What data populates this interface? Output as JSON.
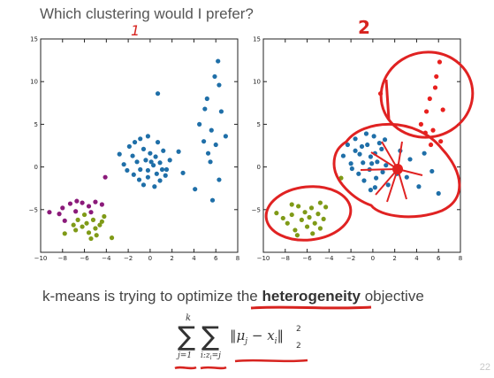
{
  "slide": {
    "title": "Which clustering would I prefer?",
    "objective_prefix": "k-means is trying to optimize the ",
    "objective_keyword": "heterogeneity",
    "objective_suffix": " objective",
    "page_number": "22"
  },
  "annotations": {
    "label_left": "1",
    "label_right": "2"
  },
  "formula": {
    "outer_upper": "k",
    "outer_lower": "j=1",
    "inner_lower": "i:z",
    "inner_lower_sub": "i",
    "inner_lower_rest": "=j",
    "mu": "μ",
    "mu_sub": "j",
    "minus": "−",
    "x": "x",
    "x_sub": "i",
    "norm_sub": "2",
    "norm_sup": "2"
  },
  "chart_data": [
    {
      "type": "scatter",
      "title": "",
      "xlabel": "",
      "ylabel": "",
      "xlim": [
        -10,
        8
      ],
      "ylim": [
        -10,
        15
      ],
      "xticks": [
        -10,
        -8,
        -6,
        -4,
        -2,
        0,
        2,
        4,
        6,
        8
      ],
      "yticks": [
        -10,
        -5,
        0,
        5,
        10,
        15
      ],
      "colors": {
        "purple": "#8b1a7a",
        "green": "#7f9a17",
        "blue": "#1f6fa8"
      },
      "series": [
        {
          "color": "purple",
          "points": [
            [
              -9.2,
              -5.3
            ],
            [
              -8.3,
              -5.5
            ],
            [
              -8,
              -4.8
            ],
            [
              -7.3,
              -4.3
            ],
            [
              -6.7,
              -4.0
            ],
            [
              -6.2,
              -4.2
            ],
            [
              -5.6,
              -4.6
            ],
            [
              -5.0,
              -4.1
            ],
            [
              -4.4,
              -4.4
            ],
            [
              -6.8,
              -5.2
            ],
            [
              -7.8,
              -6.3
            ],
            [
              -5.4,
              -5.3
            ],
            [
              -4.1,
              -1.2
            ]
          ]
        },
        {
          "color": "green",
          "points": [
            [
              -7.8,
              -7.8
            ],
            [
              -7.0,
              -6.8
            ],
            [
              -6.6,
              -6.2
            ],
            [
              -6.2,
              -7.0
            ],
            [
              -5.8,
              -6.6
            ],
            [
              -5.6,
              -7.7
            ],
            [
              -5.2,
              -6.2
            ],
            [
              -5.0,
              -7.2
            ],
            [
              -4.6,
              -6.8
            ],
            [
              -4.4,
              -6.4
            ],
            [
              -6.0,
              -5.6
            ],
            [
              -4.9,
              -8.0
            ],
            [
              -5.4,
              -8.4
            ],
            [
              -6.8,
              -7.4
            ],
            [
              -3.5,
              -8.3
            ],
            [
              -4.2,
              -5.8
            ]
          ]
        },
        {
          "color": "blue",
          "points": [
            [
              -2.8,
              1.5
            ],
            [
              -2.4,
              0.3
            ],
            [
              -1.9,
              2.4
            ],
            [
              -1.6,
              1.3
            ],
            [
              -1.2,
              0.6
            ],
            [
              -0.9,
              3.3
            ],
            [
              -0.6,
              2.1
            ],
            [
              -0.4,
              0.8
            ],
            [
              -0.2,
              -0.4
            ],
            [
              0.0,
              1.6
            ],
            [
              0.3,
              0.2
            ],
            [
              0.6,
              -0.8
            ],
            [
              0.9,
              0.5
            ],
            [
              1.2,
              1.9
            ],
            [
              1.5,
              -0.3
            ],
            [
              1.8,
              0.8
            ],
            [
              -1.5,
              -0.9
            ],
            [
              -1.0,
              -1.5
            ],
            [
              -0.6,
              -2.1
            ],
            [
              -0.2,
              -1.2
            ],
            [
              0.4,
              -2.3
            ],
            [
              0.9,
              -1.6
            ],
            [
              1.4,
              -1.0
            ],
            [
              -2.1,
              -0.4
            ],
            [
              -1.4,
              2.9
            ],
            [
              -0.2,
              3.6
            ],
            [
              0.7,
              2.9
            ],
            [
              0.7,
              8.6
            ],
            [
              2.6,
              1.8
            ],
            [
              -0.9,
              -0.3
            ],
            [
              0.1,
              0.6
            ],
            [
              0.5,
              1.2
            ],
            [
              1.1,
              -0.3
            ],
            [
              3.0,
              -0.7
            ],
            [
              4.1,
              -2.6
            ],
            [
              4.5,
              5.0
            ],
            [
              5.0,
              6.8
            ],
            [
              5.2,
              8.0
            ],
            [
              5.6,
              4.3
            ],
            [
              5.9,
              10.6
            ],
            [
              6.2,
              12.4
            ],
            [
              6.5,
              6.5
            ],
            [
              6.0,
              2.6
            ],
            [
              6.9,
              3.6
            ],
            [
              5.5,
              0.6
            ],
            [
              6.3,
              -1.5
            ],
            [
              5.7,
              -3.9
            ],
            [
              5.3,
              1.6
            ],
            [
              6.3,
              9.6
            ],
            [
              4.9,
              3.0
            ]
          ]
        }
      ]
    },
    {
      "type": "scatter",
      "title": "",
      "xlabel": "",
      "ylabel": "",
      "xlim": [
        -10,
        8
      ],
      "ylim": [
        -10,
        15
      ],
      "xticks": [
        -10,
        -8,
        -6,
        -4,
        -2,
        0,
        2,
        4,
        6,
        8
      ],
      "yticks": [
        -10,
        -5,
        0,
        5,
        10,
        15
      ],
      "colors": {
        "purple": "#8b1a7a",
        "green": "#7f9a17",
        "blue": "#1f6fa8",
        "red": "#e8201e"
      },
      "series": [
        {
          "color": "green",
          "points": [
            [
              -8.8,
              -5.4
            ],
            [
              -8.2,
              -6.0
            ],
            [
              -7.8,
              -6.6
            ],
            [
              -7.4,
              -5.6
            ],
            [
              -7.1,
              -7.4
            ],
            [
              -6.8,
              -4.6
            ],
            [
              -6.5,
              -6.2
            ],
            [
              -6.2,
              -5.3
            ],
            [
              -6.0,
              -7.0
            ],
            [
              -5.8,
              -5.9
            ],
            [
              -5.6,
              -4.8
            ],
            [
              -5.3,
              -6.6
            ],
            [
              -5.0,
              -5.5
            ],
            [
              -4.8,
              -7.2
            ],
            [
              -4.5,
              -6.1
            ],
            [
              -4.3,
              -4.7
            ],
            [
              -6.9,
              -8.0
            ],
            [
              -5.5,
              -7.8
            ],
            [
              -7.4,
              -4.4
            ],
            [
              -4.8,
              -4.2
            ],
            [
              -2.9,
              -1.3
            ]
          ]
        },
        {
          "color": "blue",
          "points": [
            [
              -2.7,
              1.3
            ],
            [
              -2.3,
              2.6
            ],
            [
              -2.0,
              0.4
            ],
            [
              -1.6,
              3.3
            ],
            [
              -1.2,
              1.5
            ],
            [
              -0.9,
              0.5
            ],
            [
              -0.5,
              2.6
            ],
            [
              -0.2,
              1.2
            ],
            [
              0.1,
              3.6
            ],
            [
              0.4,
              0.6
            ],
            [
              0.8,
              2.1
            ],
            [
              -1.3,
              -0.8
            ],
            [
              -0.8,
              -1.6
            ],
            [
              -0.3,
              -0.3
            ],
            [
              0.3,
              -1.3
            ],
            [
              0.9,
              -0.6
            ],
            [
              1.4,
              -2.1
            ],
            [
              -1.9,
              -0.2
            ],
            [
              -0.6,
              3.9
            ],
            [
              0.2,
              -2.4
            ],
            [
              1.2,
              0.2
            ],
            [
              2.5,
              1.9
            ],
            [
              3.1,
              -1.2
            ],
            [
              4.2,
              -2.3
            ],
            [
              5.4,
              -0.5
            ],
            [
              6.0,
              -3.1
            ],
            [
              4.7,
              1.6
            ],
            [
              3.4,
              0.9
            ],
            [
              2.2,
              -0.8
            ],
            [
              -0.1,
              0.4
            ],
            [
              1.1,
              3.2
            ],
            [
              -1.6,
              1.9
            ],
            [
              0.6,
              2.8
            ],
            [
              -0.2,
              -2.7
            ],
            [
              -1.0,
              2.4
            ],
            [
              0.2,
              1.6
            ]
          ]
        },
        {
          "color": "red",
          "points": [
            [
              0.7,
              8.6
            ],
            [
              4.4,
              5.0
            ],
            [
              4.9,
              6.5
            ],
            [
              5.2,
              8.0
            ],
            [
              5.5,
              4.3
            ],
            [
              5.8,
              10.6
            ],
            [
              6.1,
              12.3
            ],
            [
              6.4,
              6.7
            ],
            [
              6.2,
              3.0
            ],
            [
              5.7,
              9.3
            ],
            [
              5.3,
              2.6
            ],
            [
              4.8,
              4.0
            ]
          ]
        }
      ]
    }
  ]
}
